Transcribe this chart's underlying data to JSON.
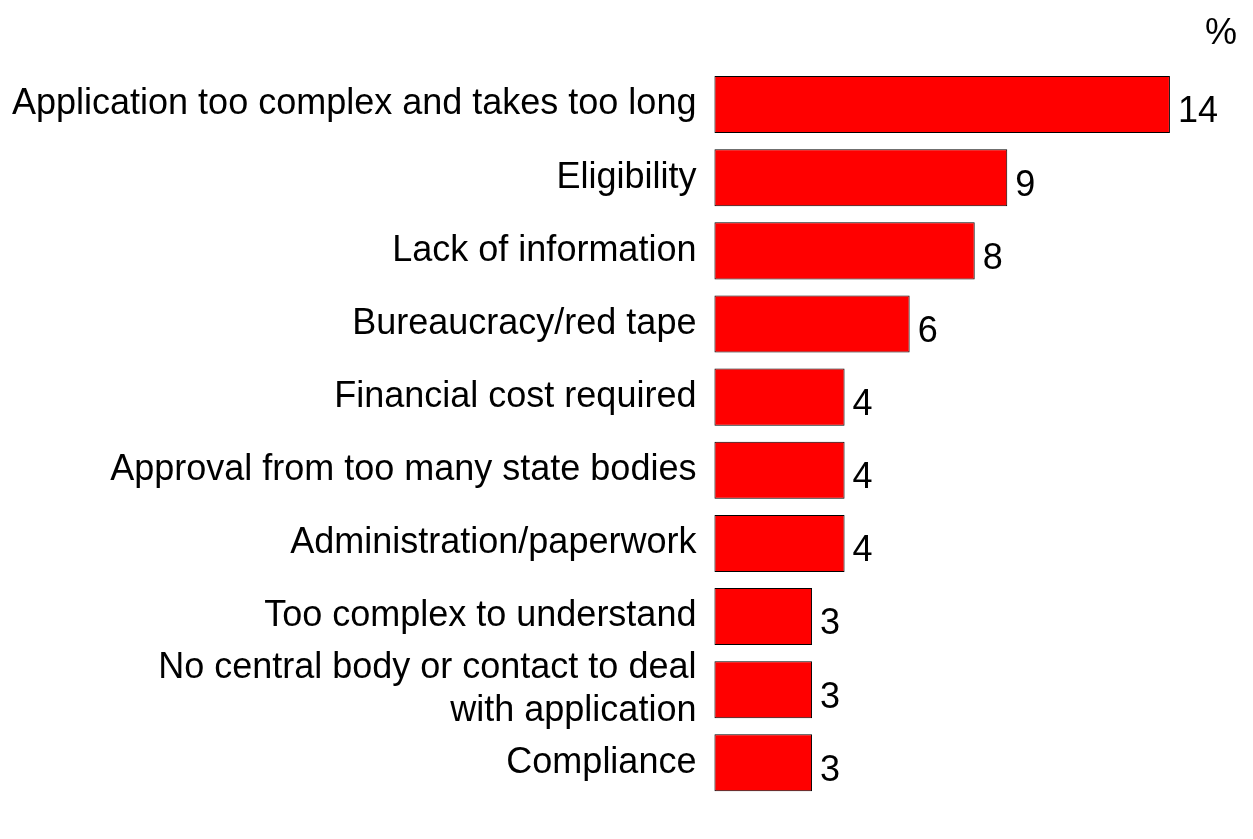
{
  "chart_data": {
    "type": "bar",
    "orientation": "horizontal",
    "categories": [
      "Application too complex and takes too long",
      "Eligibility",
      "Lack of information",
      "Bureaucracy/red tape",
      "Financial cost required",
      "Approval from too many state bodies",
      "Administration/paperwork",
      "Too complex to understand",
      "No central body or contact to deal with application",
      "Compliance"
    ],
    "values": [
      14,
      9,
      8,
      6,
      4,
      4,
      4,
      3,
      3,
      3
    ],
    "color": "#ff0000",
    "data_labels": true,
    "grid": false,
    "legend": false,
    "annotations": [
      "%"
    ]
  }
}
